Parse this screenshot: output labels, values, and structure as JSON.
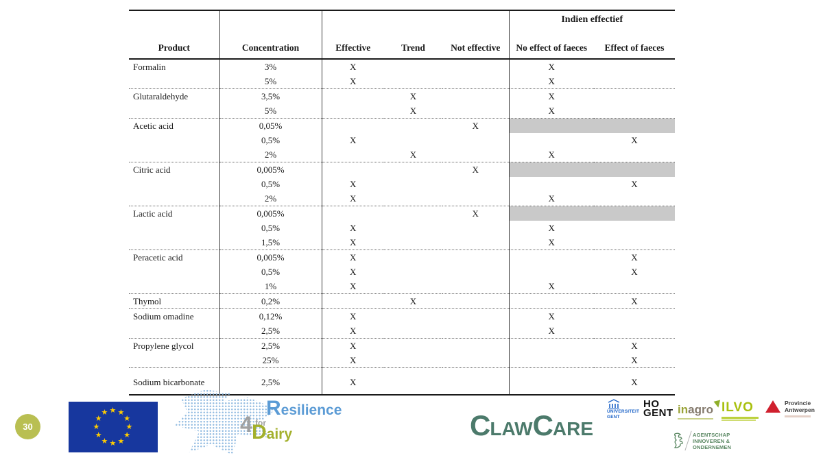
{
  "page": {
    "slide_number": "30"
  },
  "table": {
    "header": {
      "span_label": "Indien effectief",
      "columns": [
        "Product",
        "Concentration",
        "Effective",
        "Trend",
        "Not effective",
        "No effect of faeces",
        "Effect of faeces"
      ]
    },
    "groups": [
      {
        "product": "Formalin",
        "rows": [
          {
            "concentration": "3%",
            "effective": "X",
            "trend": "",
            "not_effective": "",
            "no_effect_of_faeces": "X",
            "effect_of_faeces": "",
            "grey": false
          },
          {
            "concentration": "5%",
            "effective": "X",
            "trend": "",
            "not_effective": "",
            "no_effect_of_faeces": "X",
            "effect_of_faeces": "",
            "grey": false
          }
        ]
      },
      {
        "product": "Glutaraldehyde",
        "rows": [
          {
            "concentration": "3,5%",
            "effective": "",
            "trend": "X",
            "not_effective": "",
            "no_effect_of_faeces": "X",
            "effect_of_faeces": "",
            "grey": false
          },
          {
            "concentration": "5%",
            "effective": "",
            "trend": "X",
            "not_effective": "",
            "no_effect_of_faeces": "X",
            "effect_of_faeces": "",
            "grey": false
          }
        ]
      },
      {
        "product": "Acetic acid",
        "rows": [
          {
            "concentration": "0,05%",
            "effective": "",
            "trend": "",
            "not_effective": "X",
            "no_effect_of_faeces": "",
            "effect_of_faeces": "",
            "grey": true
          },
          {
            "concentration": "0,5%",
            "effective": "X",
            "trend": "",
            "not_effective": "",
            "no_effect_of_faeces": "",
            "effect_of_faeces": "X",
            "grey": false
          },
          {
            "concentration": "2%",
            "effective": "",
            "trend": "X",
            "not_effective": "",
            "no_effect_of_faeces": "X",
            "effect_of_faeces": "",
            "grey": false
          }
        ]
      },
      {
        "product": "Citric acid",
        "rows": [
          {
            "concentration": "0,005%",
            "effective": "",
            "trend": "",
            "not_effective": "X",
            "no_effect_of_faeces": "",
            "effect_of_faeces": "",
            "grey": true
          },
          {
            "concentration": "0,5%",
            "effective": "X",
            "trend": "",
            "not_effective": "",
            "no_effect_of_faeces": "",
            "effect_of_faeces": "X",
            "grey": false
          },
          {
            "concentration": "2%",
            "effective": "X",
            "trend": "",
            "not_effective": "",
            "no_effect_of_faeces": "X",
            "effect_of_faeces": "",
            "grey": false
          }
        ]
      },
      {
        "product": "Lactic acid",
        "rows": [
          {
            "concentration": "0,005%",
            "effective": "",
            "trend": "",
            "not_effective": "X",
            "no_effect_of_faeces": "",
            "effect_of_faeces": "",
            "grey": true
          },
          {
            "concentration": "0,5%",
            "effective": "X",
            "trend": "",
            "not_effective": "",
            "no_effect_of_faeces": "X",
            "effect_of_faeces": "",
            "grey": false
          },
          {
            "concentration": "1,5%",
            "effective": "X",
            "trend": "",
            "not_effective": "",
            "no_effect_of_faeces": "X",
            "effect_of_faeces": "",
            "grey": false
          }
        ]
      },
      {
        "product": "Peracetic acid",
        "rows": [
          {
            "concentration": "0,005%",
            "effective": "X",
            "trend": "",
            "not_effective": "",
            "no_effect_of_faeces": "",
            "effect_of_faeces": "X",
            "grey": false
          },
          {
            "concentration": "0,5%",
            "effective": "X",
            "trend": "",
            "not_effective": "",
            "no_effect_of_faeces": "",
            "effect_of_faeces": "X",
            "grey": false
          },
          {
            "concentration": "1%",
            "effective": "X",
            "trend": "",
            "not_effective": "",
            "no_effect_of_faeces": "X",
            "effect_of_faeces": "",
            "grey": false
          }
        ]
      },
      {
        "product": "Thymol",
        "rows": [
          {
            "concentration": "0,2%",
            "effective": "",
            "trend": "X",
            "not_effective": "",
            "no_effect_of_faeces": "",
            "effect_of_faeces": "X",
            "grey": false
          }
        ]
      },
      {
        "product": "Sodium omadine",
        "rows": [
          {
            "concentration": "0,12%",
            "effective": "X",
            "trend": "",
            "not_effective": "",
            "no_effect_of_faeces": "X",
            "effect_of_faeces": "",
            "grey": false
          },
          {
            "concentration": "2,5%",
            "effective": "X",
            "trend": "",
            "not_effective": "",
            "no_effect_of_faeces": "X",
            "effect_of_faeces": "",
            "grey": false
          }
        ]
      },
      {
        "product": "Propylene glycol",
        "rows": [
          {
            "concentration": "2,5%",
            "effective": "X",
            "trend": "",
            "not_effective": "",
            "no_effect_of_faeces": "",
            "effect_of_faeces": "X",
            "grey": false
          },
          {
            "concentration": "25%",
            "effective": "X",
            "trend": "",
            "not_effective": "",
            "no_effect_of_faeces": "",
            "effect_of_faeces": "X",
            "grey": false
          }
        ]
      },
      {
        "product": "Sodium bicarbonate",
        "rows": [
          {
            "concentration": "2,5%",
            "effective": "X",
            "trend": "",
            "not_effective": "",
            "no_effect_of_faeces": "",
            "effect_of_faeces": "X",
            "grey": false
          }
        ]
      }
    ]
  },
  "footer": {
    "badge": "30",
    "r4d_logo": {
      "resilience_cap": "R",
      "resilience_rest": "esilience",
      "four": "4",
      "for_word": "for",
      "dairy_cap": "D",
      "dairy_rest": "airy"
    },
    "clawcare_logo": {
      "c1": "C",
      "p1": "LAW",
      "c2": "C",
      "p2": "ARE"
    },
    "partners": {
      "ugent": {
        "lines": [
          "UNIVERSITEIT",
          "GENT"
        ]
      },
      "hogent": {
        "lines": [
          "HO",
          "GENT"
        ]
      },
      "inagro": {
        "part_in": "in",
        "part_agro": "agro"
      },
      "ilvo": {
        "label": "ILVO"
      },
      "antwerpen": {
        "lines": [
          "Provincie",
          "Antwerpen"
        ]
      },
      "vlaio": {
        "lines": [
          "AGENTSCHAP",
          "INNOVEREN &",
          "ONDERNEMEN"
        ]
      }
    }
  },
  "colors": {
    "grey_row": "#c9c9c9",
    "badge": "#b9bf52",
    "eu_blue": "#17379e",
    "eu_star": "#ffcc00",
    "r4d_blue": "#5b9bd5",
    "r4d_gray": "#a0a0a0",
    "r4d_olive": "#a3b02c",
    "clawcare_green": "#4c7a6b",
    "ugent_blue": "#1e64c8",
    "hogent_black": "#111111",
    "inagro_green": "#9aa338",
    "ilvo_green": "#a9c00f",
    "antwerpen_red": "#d0202e",
    "vlaio_green": "#57855f"
  }
}
